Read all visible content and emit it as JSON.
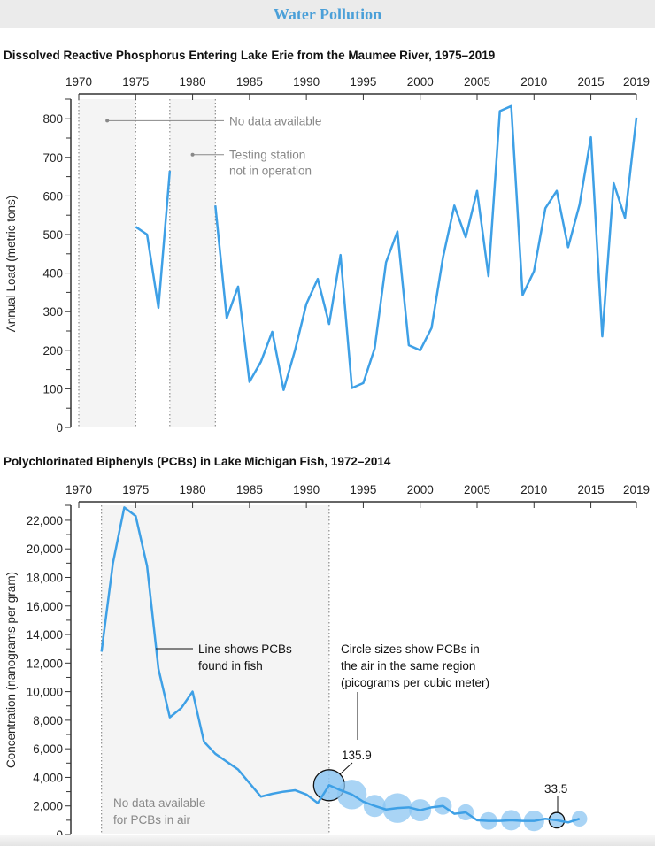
{
  "header": {
    "title": "Water Pollution"
  },
  "colors": {
    "line": "#3ea0e6",
    "circle_fill": "#8cc6f2",
    "shade": "#f4f4f4",
    "header_title": "#4a9fd8"
  },
  "chart_data": [
    {
      "type": "line",
      "title": "Dissolved Reactive Phosphorus Entering Lake Erie from the Maumee River, 1975–2019",
      "ylabel": "Annual Load (metric tons)",
      "xlabel": "",
      "xlim": [
        1970,
        2019
      ],
      "ylim": [
        0,
        850
      ],
      "x_ticks": [
        1970,
        1975,
        1980,
        1985,
        1990,
        1995,
        2000,
        2005,
        2010,
        2015,
        2019
      ],
      "y_ticks": [
        0,
        100,
        200,
        300,
        400,
        500,
        600,
        700,
        800
      ],
      "x_axis_position": "top",
      "shaded_ranges": [
        [
          1970,
          1975
        ],
        [
          1978,
          1982
        ]
      ],
      "annotations": [
        {
          "text": "No data available",
          "x": 1972.5,
          "y": 795
        },
        {
          "text_lines": [
            "Testing station",
            "not in operation"
          ],
          "x": 1980,
          "y": 707
        }
      ],
      "segments": [
        {
          "x": [
            1975,
            1976,
            1977,
            1978
          ],
          "y": [
            520,
            500,
            310,
            665
          ]
        },
        {
          "x": [
            1982,
            1983,
            1984,
            1985,
            1986,
            1987,
            1988,
            1989,
            1990,
            1991,
            1992,
            1993,
            1994,
            1995,
            1996,
            1997,
            1998,
            1999,
            2000,
            2001,
            2002,
            2003,
            2004,
            2005,
            2006,
            2007,
            2008,
            2009,
            2010,
            2011,
            2012,
            2013,
            2014,
            2015,
            2016,
            2017,
            2018,
            2019
          ],
          "y": [
            575,
            283,
            365,
            118,
            170,
            248,
            97,
            200,
            320,
            385,
            268,
            447,
            102,
            115,
            205,
            428,
            508,
            213,
            200,
            258,
            440,
            575,
            493,
            613,
            392,
            820,
            833,
            343,
            405,
            568,
            613,
            467,
            577,
            752,
            236,
            633,
            543,
            803
          ]
        }
      ]
    },
    {
      "type": "line",
      "title": "Polychlorinated Biphenyls (PCBs) in Lake Michigan Fish, 1972–2014",
      "ylabel": "Concentration (nanograms per gram)",
      "xlabel": "",
      "xlim": [
        1970,
        2019
      ],
      "ylim": [
        0,
        23000
      ],
      "x_ticks": [
        1970,
        1975,
        1980,
        1985,
        1990,
        1995,
        2000,
        2005,
        2010,
        2015,
        2019
      ],
      "y_ticks": [
        0,
        2000,
        4000,
        6000,
        8000,
        10000,
        12000,
        14000,
        16000,
        18000,
        20000,
        22000
      ],
      "y_tick_labels": [
        "0",
        "2,000",
        "4,000",
        "6,000",
        "8,000",
        "10,000",
        "12,000",
        "14,000",
        "16,000",
        "18,000",
        "20,000",
        "22,000"
      ],
      "x_axis_position": "top",
      "shaded_ranges": [
        [
          1972,
          1992
        ]
      ],
      "annotations": [
        {
          "text_lines": [
            "Line shows PCBs",
            "found in fish"
          ]
        },
        {
          "text_lines": [
            "Circle sizes show PCBs in",
            "the air in the same region",
            "(picograms per cubic meter)"
          ]
        },
        {
          "text_lines": [
            "No data available",
            "for PCBs in air"
          ]
        },
        {
          "text": "135.9",
          "x": 1992
        },
        {
          "text": "33.5",
          "x": 2012
        }
      ],
      "fish_series": {
        "x": [
          1972,
          1973,
          1974,
          1975,
          1976,
          1977,
          1978,
          1979,
          1980,
          1981,
          1982,
          1983,
          1984,
          1985,
          1986,
          1987,
          1988,
          1989,
          1990,
          1991,
          1992,
          1993,
          1994,
          1995,
          1996,
          1997,
          1998,
          1999,
          2000,
          2001,
          2002,
          2003,
          2004,
          2005,
          2006,
          2007,
          2008,
          2009,
          2010,
          2011,
          2012,
          2013,
          2014
        ],
        "y": [
          12800,
          19000,
          22900,
          22300,
          18800,
          11600,
          8200,
          8850,
          10000,
          6500,
          5650,
          5100,
          4550,
          3600,
          2650,
          2850,
          3000,
          3100,
          2800,
          2200,
          3450,
          3100,
          2800,
          2300,
          2000,
          1750,
          1850,
          1900,
          1700,
          1900,
          2000,
          1450,
          1550,
          1000,
          950,
          950,
          1000,
          950,
          950,
          1100,
          1000,
          850,
          1100
        ]
      },
      "air_series": {
        "x": [
          1992,
          1994,
          1996,
          1998,
          2000,
          2002,
          2004,
          2006,
          2008,
          2010,
          2012,
          2014
        ],
        "values": [
          135.9,
          124,
          69,
          124,
          69,
          44,
          37,
          44,
          59,
          60,
          33.5,
          34
        ],
        "highlighted": [
          1992,
          2012
        ]
      }
    }
  ]
}
